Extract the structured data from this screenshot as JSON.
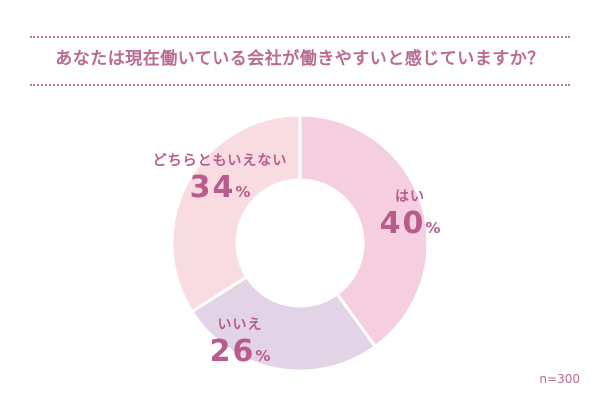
{
  "title": "あなたは現在働いている会社が働きやすいと感じていますか？",
  "sample_note": "n=300",
  "percent_unit": "%",
  "chart_data": {
    "type": "pie",
    "donut": true,
    "title": "あなたは現在働いている会社が働きやすいと感じていますか？",
    "categories": [
      "はい",
      "いいえ",
      "どちらともいえない"
    ],
    "values": [
      40,
      26,
      34
    ],
    "colors": [
      "#f5cfe0",
      "#e3d3e6",
      "#f8dce2"
    ],
    "value_labels": [
      "40",
      "26",
      "34"
    ],
    "stroke_color": "#ffffff"
  }
}
